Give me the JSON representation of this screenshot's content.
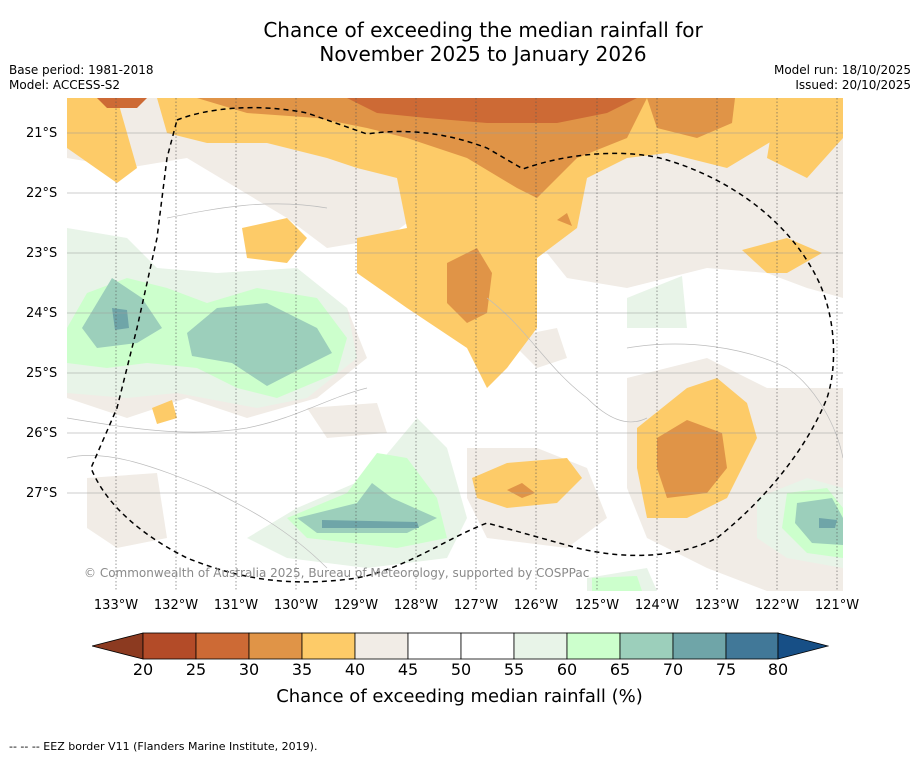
{
  "title": {
    "line1": "Chance of exceeding the median rainfall for",
    "line2": "November 2025 to January 2026"
  },
  "meta": {
    "base_period": "Base period: 1981-2018",
    "model": "Model: ACCESS-S2",
    "model_run": "Model run: 18/10/2025",
    "issued": "Issued: 20/10/2025"
  },
  "copyright": "© Commonwealth of Australia 2025, Bureau of Meteorology, supported by COSPPac",
  "latitudes": [
    "21°S",
    "22°S",
    "23°S",
    "24°S",
    "25°S",
    "26°S",
    "27°S"
  ],
  "longitudes": [
    "133°W",
    "132°W",
    "131°W",
    "130°W",
    "129°W",
    "128°W",
    "127°W",
    "126°W",
    "125°W",
    "124°W",
    "123°W",
    "122°W",
    "121°W"
  ],
  "colorbar": {
    "ticks": [
      "20",
      "25",
      "30",
      "35",
      "40",
      "45",
      "50",
      "55",
      "60",
      "65",
      "70",
      "75",
      "80"
    ],
    "colors": [
      "#8c3a20",
      "#b34b28",
      "#cd6a35",
      "#e09447",
      "#fdcb68",
      "#f1ece6",
      "#ffffff",
      "#ffffff",
      "#e8f4e8",
      "#ccffcc",
      "#9ccfbb",
      "#6fa5a8",
      "#417898",
      "#174f86"
    ],
    "title": "Chance of exceeding median rainfall (%)"
  },
  "footer": "--  --  -- EEZ border V11 (Flanders Marine Institute, 2019).",
  "colors": {
    "c30": "#cd6a35",
    "c35": "#e09447",
    "c40": "#fdcb68",
    "c45": "#f1ece6",
    "c60": "#e8f4e8",
    "c65": "#ccffcc",
    "c70": "#9ccfbb",
    "c75": "#6fa5a8"
  }
}
